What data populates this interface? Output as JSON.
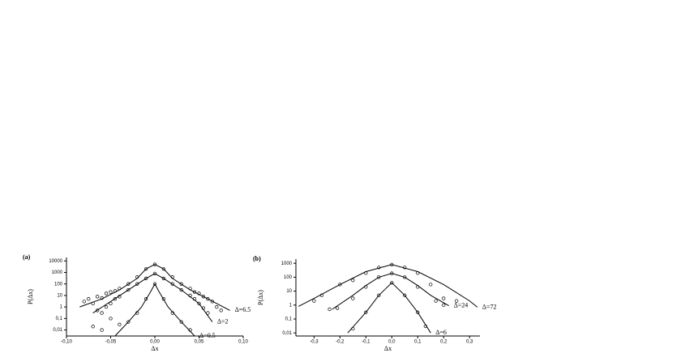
{
  "chart_data": [
    {
      "type": "line",
      "panel_label": "(a)",
      "xlabel": "Δx",
      "ylabel": "P(Δx)",
      "log_y": true,
      "color": "#000000",
      "marker": "circle",
      "xlim": [
        -0.1,
        0.1
      ],
      "ylim": [
        0.003,
        20000
      ],
      "xticks": [
        {
          "value": -0.1,
          "label": "-0,10"
        },
        {
          "value": -0.05,
          "label": "-0,05"
        },
        {
          "value": 0,
          "label": "0,00"
        },
        {
          "value": 0.05,
          "label": "0,05"
        },
        {
          "value": 0.1,
          "label": "0,10"
        }
      ],
      "yticks": [
        {
          "value": 0.01,
          "label": "0,01"
        },
        {
          "value": 0.1,
          "label": "0,1"
        },
        1,
        10,
        100,
        1000,
        10000
      ],
      "series": [
        {
          "name": "Δ=6.5",
          "x": [
            -0.085,
            -0.06,
            -0.04,
            -0.02,
            -0.01,
            0,
            0.01,
            0.02,
            0.04,
            0.06,
            0.085
          ],
          "values": [
            1,
            5,
            30,
            300,
            2000,
            5000,
            2000,
            300,
            30,
            5,
            0.5
          ],
          "points": {
            "x": [
              -0.08,
              -0.075,
              -0.07,
              -0.065,
              -0.06,
              -0.055,
              -0.05,
              -0.045,
              -0.04,
              -0.03,
              -0.02,
              -0.01,
              0,
              0.01,
              0.02,
              0.03,
              0.04,
              0.045,
              0.05,
              0.055,
              0.06,
              0.065,
              0.07,
              0.075
            ],
            "values": [
              3,
              5,
              2,
              8,
              6,
              15,
              20,
              25,
              40,
              100,
              400,
              2000,
              5000,
              2000,
              400,
              100,
              40,
              20,
              15,
              8,
              5,
              3,
              1,
              0.5
            ]
          }
        },
        {
          "name": "Δ=2",
          "x": [
            -0.07,
            -0.05,
            -0.03,
            -0.01,
            0,
            0.01,
            0.03,
            0.05,
            0.065
          ],
          "values": [
            0.3,
            3,
            30,
            300,
            800,
            300,
            30,
            2,
            0.05
          ],
          "points": {
            "x": [
              -0.065,
              -0.06,
              -0.055,
              -0.05,
              -0.045,
              -0.04,
              -0.03,
              -0.02,
              -0.01,
              0,
              0.01,
              0.02,
              0.03,
              0.04,
              0.045,
              0.05,
              0.055,
              0.06
            ],
            "values": [
              0.5,
              0.3,
              1,
              2,
              5,
              8,
              30,
              100,
              300,
              800,
              300,
              100,
              30,
              10,
              5,
              2,
              0.8,
              0.3
            ]
          }
        },
        {
          "name": "Δ=0.5",
          "x": [
            -0.045,
            -0.03,
            -0.015,
            -0.005,
            0,
            0.005,
            0.015,
            0.03,
            0.045
          ],
          "values": [
            0.003,
            0.05,
            1,
            20,
            100,
            20,
            1,
            0.05,
            0.003
          ],
          "points": {
            "x": [
              -0.07,
              -0.06,
              -0.05,
              -0.04,
              -0.03,
              -0.02,
              -0.01,
              0,
              0.01,
              0.02,
              0.03,
              0.04
            ],
            "values": [
              0.02,
              0.01,
              0.1,
              0.03,
              0.05,
              0.3,
              5,
              100,
              5,
              0.3,
              0.05,
              0.01
            ]
          }
        }
      ]
    },
    {
      "type": "line",
      "panel_label": "(b)",
      "xlabel": "Δx",
      "ylabel": "P(Δx)",
      "log_y": true,
      "color": "#000000",
      "marker": "circle",
      "xlim": [
        -0.37,
        0.34
      ],
      "ylim": [
        0.006,
        2000
      ],
      "xticks": [
        {
          "value": -0.3,
          "label": "-0,3"
        },
        {
          "value": -0.2,
          "label": "-0,2"
        },
        {
          "value": -0.1,
          "label": "-0,1"
        },
        {
          "value": 0,
          "label": "0,0"
        },
        {
          "value": 0.1,
          "label": "0,1"
        },
        {
          "value": 0.2,
          "label": "0,2"
        },
        {
          "value": 0.3,
          "label": "0,3"
        }
      ],
      "yticks": [
        {
          "value": 0.01,
          "label": "0,01"
        },
        {
          "value": 0.1,
          "label": "0,1"
        },
        1,
        10,
        100,
        1000
      ],
      "series": [
        {
          "name": "Δ=72",
          "x": [
            -0.36,
            -0.3,
            -0.2,
            -0.1,
            0,
            0.1,
            0.2,
            0.3,
            0.33
          ],
          "values": [
            0.8,
            3,
            30,
            250,
            800,
            250,
            30,
            2,
            0.7
          ],
          "points": {
            "x": [
              -0.3,
              -0.27,
              -0.2,
              -0.15,
              -0.1,
              -0.05,
              0,
              0.05,
              0.1,
              0.15,
              0.2,
              0.25
            ],
            "values": [
              2,
              5,
              30,
              60,
              200,
              500,
              800,
              500,
              200,
              30,
              3,
              2
            ]
          }
        },
        {
          "name": "Δ=24",
          "x": [
            -0.23,
            -0.15,
            -0.1,
            -0.05,
            0,
            0.05,
            0.1,
            0.15,
            0.22
          ],
          "values": [
            0.5,
            5,
            25,
            100,
            190,
            100,
            25,
            5,
            0.9
          ],
          "points": {
            "x": [
              -0.24,
              -0.21,
              -0.15,
              -0.1,
              -0.05,
              0,
              0.05,
              0.1,
              0.17,
              0.2
            ],
            "values": [
              0.5,
              0.6,
              3,
              20,
              100,
              190,
              100,
              20,
              2,
              1
            ]
          }
        },
        {
          "name": "Δ=6",
          "x": [
            -0.17,
            -0.1,
            -0.05,
            0,
            0.05,
            0.1,
            0.15
          ],
          "values": [
            0.01,
            0.3,
            5,
            40,
            5,
            0.3,
            0.01
          ],
          "points": {
            "x": [
              -0.15,
              -0.1,
              -0.05,
              0,
              0.05,
              0.1,
              0.13
            ],
            "values": [
              0.02,
              0.3,
              5,
              40,
              5,
              0.3,
              0.03
            ]
          }
        }
      ]
    }
  ]
}
